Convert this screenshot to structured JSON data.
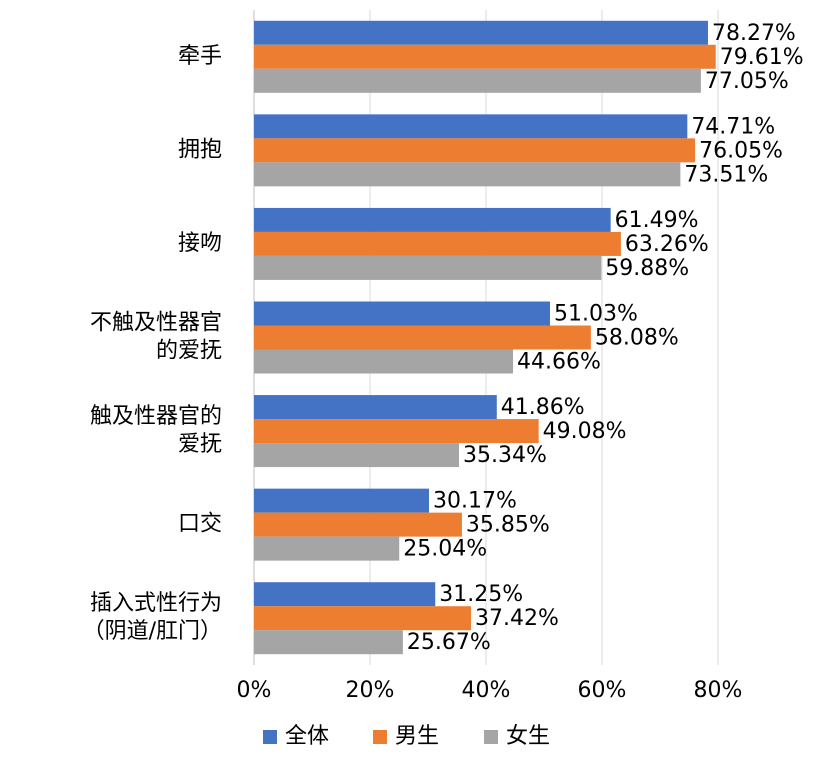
{
  "chart_data": {
    "type": "hbar",
    "categories": [
      "牵手",
      "拥抱",
      "接吻",
      "不触及性器官\n的爱抚",
      "触及性器官的\n爱抚",
      "口交",
      "插入式性行为\n（阴道/肛门）"
    ],
    "series": [
      {
        "name": "全体",
        "color": "#4472c4",
        "values": [
          78.27,
          74.71,
          61.49,
          51.03,
          41.86,
          30.17,
          31.25
        ],
        "value_labels": [
          "78.27%",
          "74.71%",
          "61.49%",
          "51.03%",
          "41.86%",
          "30.17%",
          "31.25%"
        ]
      },
      {
        "name": "男生",
        "color": "#ed7d31",
        "values": [
          79.61,
          76.05,
          63.26,
          58.08,
          49.08,
          35.85,
          37.42
        ],
        "value_labels": [
          "79.61%",
          "76.05%",
          "63.26%",
          "58.08%",
          "49.08%",
          "35.85%",
          "37.42%"
        ]
      },
      {
        "name": "女生",
        "color": "#a5a5a5",
        "values": [
          77.05,
          73.51,
          59.88,
          44.66,
          35.34,
          25.04,
          25.67
        ],
        "value_labels": [
          "77.05%",
          "73.51%",
          "59.88%",
          "44.66%",
          "35.34%",
          "25.04%",
          "25.67%"
        ]
      }
    ],
    "xlim": [
      0,
      90
    ],
    "xticks": [
      {
        "value": 0,
        "label": "0%"
      },
      {
        "value": 20,
        "label": "20%"
      },
      {
        "value": 40,
        "label": "40%"
      },
      {
        "value": 60,
        "label": "60%"
      },
      {
        "value": 80,
        "label": "80%"
      }
    ],
    "grid": true,
    "legend": "bottom"
  }
}
